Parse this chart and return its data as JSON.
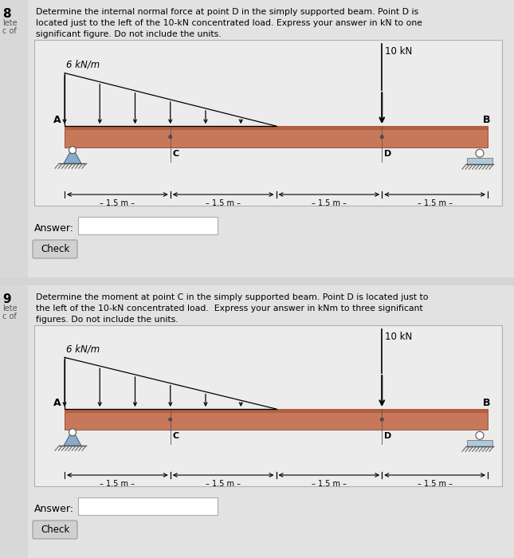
{
  "bg_color": "#d4d4d4",
  "panel_bg": "#e8e8e8",
  "beam_color": "#c8785a",
  "beam_stripe_color": "#b06040",
  "beam_bottom_color": "#8B5030",
  "support_a_color": "#8aacc8",
  "support_b_color": "#c8d8e8",
  "panel1": {
    "number": "8",
    "side_label1": "lete",
    "side_label2": "c of",
    "title_line1": "Determine the internal normal force at point D in the simply supported beam. Point D is",
    "title_line2": "located just to the left of the 10-kN concentrated load. Express your answer in kN to one",
    "title_line3": "significant figure. Do not include the units.",
    "dist_load_label": "6 kN/m",
    "point_load_label": "10 kN",
    "answer_label": "Answer:",
    "button_label": "Check"
  },
  "panel2": {
    "number": "9",
    "side_label1": "lete",
    "side_label2": "c of",
    "title_line1": "Determine the moment at point C in the simply supported beam. Point D is located just to",
    "title_line2": "the left of the 10-kN concentrated load.  Express your answer in kNm to three significant",
    "title_line3": "figures. Do not include the units.",
    "dist_load_label": "6 kN/m",
    "point_load_label": "10 kN",
    "answer_label": "Answer:",
    "button_label": "Check"
  }
}
